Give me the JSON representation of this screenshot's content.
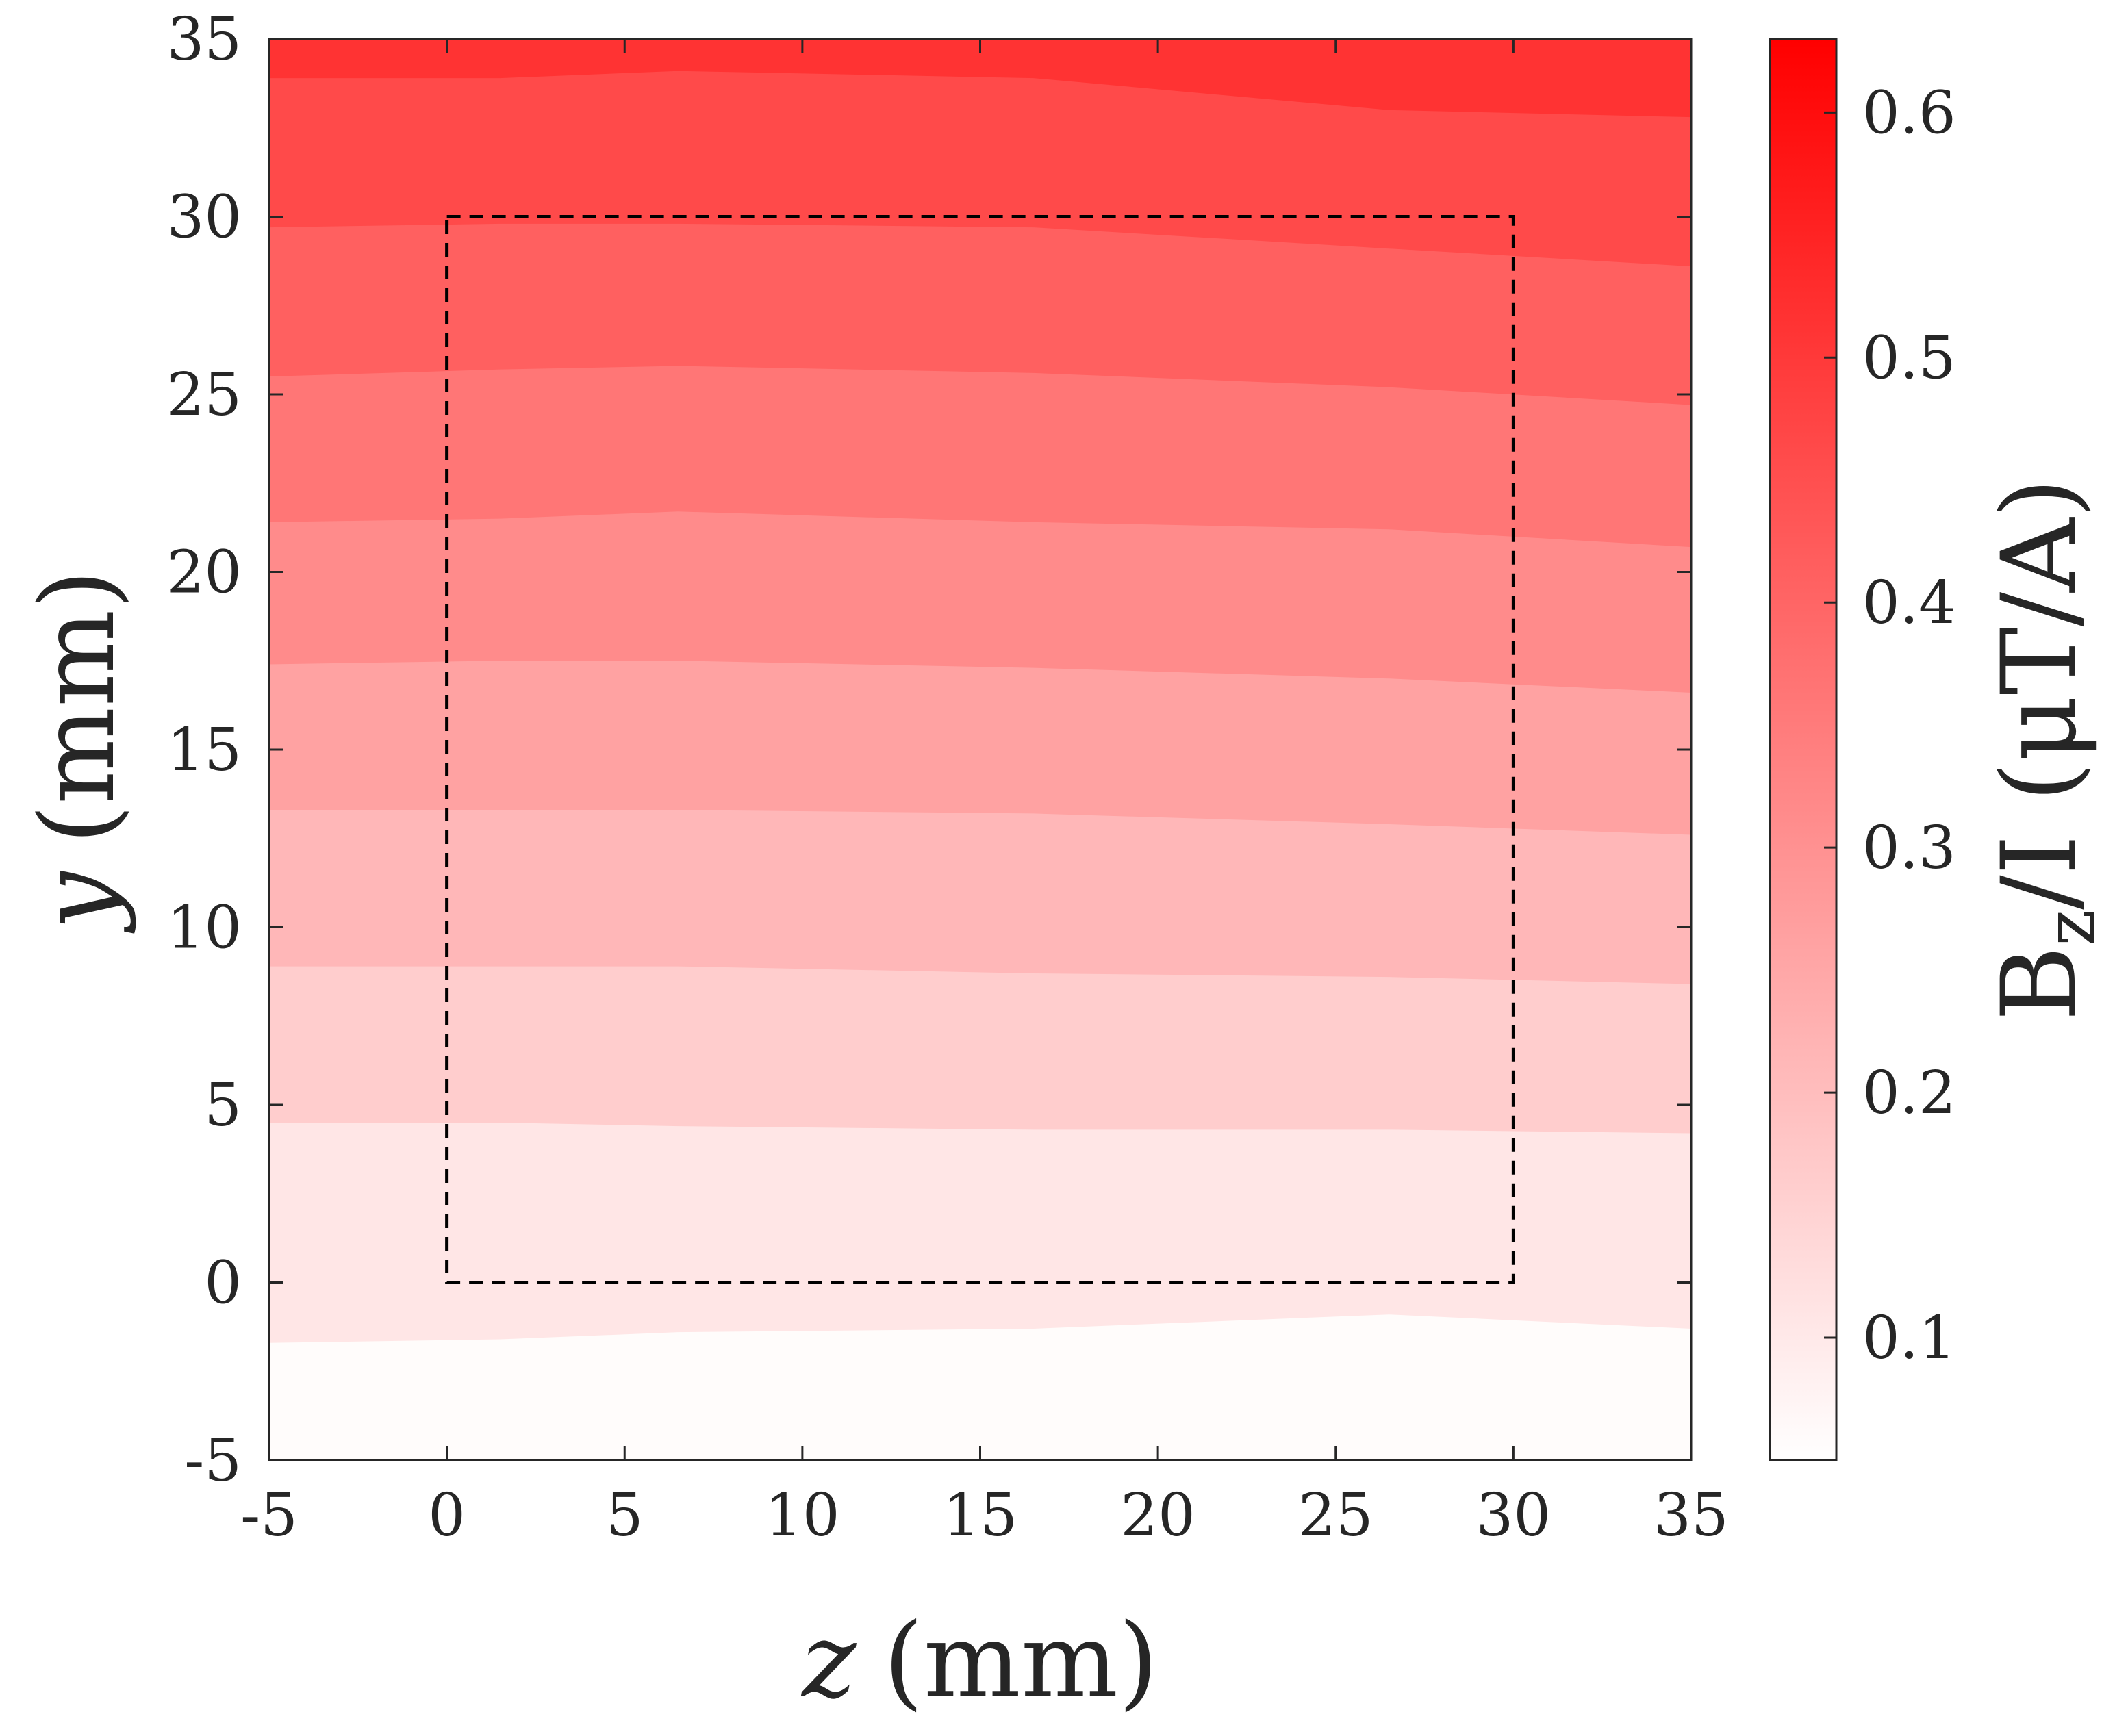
{
  "chart_data": {
    "type": "heatmap",
    "subtype": "filled-contour",
    "xlabel": {
      "var": "z",
      "unit": "(mm)"
    },
    "ylabel": {
      "var": "y",
      "unit": "(mm)"
    },
    "xlim": [
      -5,
      35
    ],
    "ylim": [
      -5,
      35
    ],
    "x_ticks": [
      -5,
      0,
      5,
      10,
      15,
      20,
      25,
      30,
      35
    ],
    "x_tick_labels": [
      "-5",
      "0",
      "5",
      "10",
      "15",
      "20",
      "25",
      "30",
      "35"
    ],
    "y_ticks": [
      -5,
      0,
      5,
      10,
      15,
      20,
      25,
      30,
      35
    ],
    "y_tick_labels": [
      "-5",
      "0",
      "5",
      "10",
      "15",
      "20",
      "25",
      "30",
      "35"
    ],
    "colorbar": {
      "label_main": "B",
      "label_sub": "z",
      "label_rest": "/I (μT/A)",
      "range": [
        0.05,
        0.63
      ],
      "ticks": [
        0.1,
        0.2,
        0.3,
        0.4,
        0.5,
        0.6
      ],
      "tick_labels": [
        "0.1",
        "0.2",
        "0.3",
        "0.4",
        "0.5",
        "0.6"
      ],
      "color_low": "#ffffff",
      "color_high": "#ff0000"
    },
    "contour_z": [
      -5,
      1.5,
      6.5,
      16.5,
      26.5,
      35
    ],
    "contour_boundaries": [
      {
        "level": 0.1,
        "y": [
          -1.7,
          -1.6,
          -1.4,
          -1.3,
          -0.9,
          -1.3
        ]
      },
      {
        "level": 0.15,
        "y": [
          4.5,
          4.5,
          4.4,
          4.3,
          4.3,
          4.2
        ]
      },
      {
        "level": 0.2,
        "y": [
          8.9,
          8.9,
          8.9,
          8.7,
          8.6,
          8.4
        ]
      },
      {
        "level": 0.25,
        "y": [
          13.3,
          13.3,
          13.3,
          13.2,
          12.9,
          12.6
        ]
      },
      {
        "level": 0.3,
        "y": [
          17.4,
          17.5,
          17.5,
          17.3,
          17.0,
          16.6
        ]
      },
      {
        "level": 0.35,
        "y": [
          21.4,
          21.5,
          21.7,
          21.4,
          21.2,
          20.7
        ]
      },
      {
        "level": 0.4,
        "y": [
          25.5,
          25.7,
          25.8,
          25.6,
          25.2,
          24.7
        ]
      },
      {
        "level": 0.45,
        "y": [
          29.7,
          29.8,
          29.8,
          29.7,
          29.1,
          28.6
        ]
      },
      {
        "level": 0.5,
        "y": [
          33.9,
          33.9,
          34.1,
          33.9,
          33.0,
          32.8
        ]
      }
    ],
    "band_colors": [
      "#fffcfb",
      "#ffe6e6",
      "#ffcdcd",
      "#ffb7b8",
      "#ffa2a2",
      "#ff8b8b",
      "#ff7676",
      "#ff6060",
      "#ff4a4a",
      "#ff3333"
    ],
    "region_box": {
      "z": [
        0,
        30
      ],
      "y": [
        0,
        30
      ],
      "style": "dashed"
    },
    "grid": false
  }
}
